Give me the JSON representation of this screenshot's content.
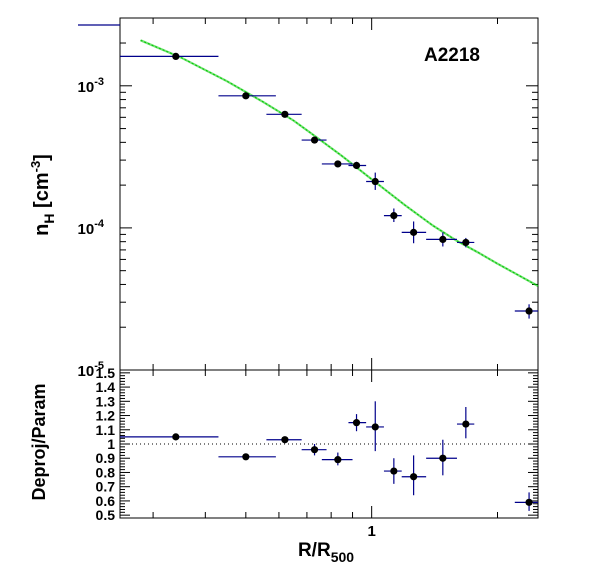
{
  "chart_data": [
    {
      "type": "scatter",
      "panel": "top",
      "title": "A2218",
      "ylabel": "n_H [cm^-3]",
      "ylabel_main": "n",
      "ylabel_sub": "H",
      "ylabel_unit": "[cm",
      "ylabel_unit_sup": "-3",
      "ylabel_unit_close": "]",
      "xscale": "log",
      "yscale": "log",
      "xlim": [
        0.25,
        2.5
      ],
      "ylim": [
        1e-05,
        0.003
      ],
      "ytick_values": [
        0.001,
        0.0001,
        1e-05
      ],
      "ytick_labels": [
        {
          "base": "10",
          "exp": "-3"
        },
        {
          "base": "10",
          "exp": "-4"
        },
        {
          "base": "10",
          "exp": "-5"
        }
      ],
      "colors": {
        "points": "#000000",
        "xerr": "#00008b",
        "yerr": "#00008b",
        "fit": "#00c800"
      },
      "series": [
        {
          "kind": "points",
          "points": [
            {
              "x": 0.34,
              "xlo": 0.25,
              "xhi": 0.43,
              "y": 0.00161,
              "ylo": 0.00156,
              "yhi": 0.00166
            },
            {
              "x": 0.5,
              "xlo": 0.43,
              "xhi": 0.59,
              "y": 0.00085,
              "ylo": 0.00082,
              "yhi": 0.00088
            },
            {
              "x": 0.62,
              "xlo": 0.56,
              "xhi": 0.68,
              "y": 0.00063,
              "ylo": 0.00061,
              "yhi": 0.00065
            },
            {
              "x": 0.73,
              "xlo": 0.68,
              "xhi": 0.78,
              "y": 0.000415,
              "ylo": 0.0004,
              "yhi": 0.00043
            },
            {
              "x": 0.83,
              "xlo": 0.76,
              "xhi": 0.9,
              "y": 0.000282,
              "ylo": 0.000268,
              "yhi": 0.000296
            },
            {
              "x": 0.92,
              "xlo": 0.88,
              "xhi": 0.97,
              "y": 0.000275,
              "ylo": 0.000262,
              "yhi": 0.000292
            },
            {
              "x": 1.02,
              "xlo": 0.97,
              "xhi": 1.07,
              "y": 0.000212,
              "ylo": 0.000185,
              "yhi": 0.000245
            },
            {
              "x": 1.13,
              "xlo": 1.07,
              "xhi": 1.18,
              "y": 0.000122,
              "ylo": 0.00011,
              "yhi": 0.000137
            },
            {
              "x": 1.26,
              "xlo": 1.18,
              "xhi": 1.35,
              "y": 9.3e-05,
              "ylo": 7.8e-05,
              "yhi": 0.000111
            },
            {
              "x": 1.48,
              "xlo": 1.35,
              "xhi": 1.6,
              "y": 8.3e-05,
              "ylo": 7.4e-05,
              "yhi": 9.3e-05
            },
            {
              "x": 1.68,
              "xlo": 1.6,
              "xhi": 1.76,
              "y": 7.9e-05,
              "ylo": 7.3e-05,
              "yhi": 8.5e-05
            },
            {
              "x": 2.38,
              "xlo": 2.2,
              "xhi": 2.5,
              "y": 2.6e-05,
              "ylo": 2.3e-05,
              "yhi": 2.9e-05
            }
          ]
        },
        {
          "kind": "fit",
          "x": [
            0.28,
            0.35,
            0.45,
            0.55,
            0.65,
            0.75,
            0.85,
            1.0,
            1.2,
            1.4,
            1.6,
            1.8,
            2.0,
            2.2,
            2.5
          ],
          "y": [
            0.00209,
            0.00158,
            0.00108,
            0.00077,
            0.00057,
            0.00042,
            0.00032,
            0.00022,
            0.000145,
            0.000104,
            8.1e-05,
            6.7e-05,
            5.6e-05,
            4.8e-05,
            3.9e-05
          ]
        }
      ]
    },
    {
      "type": "scatter",
      "panel": "bottom",
      "ylabel": "Deproj/Param",
      "xlabel": "R/R_500",
      "xlabel_main": "R/R",
      "xlabel_sub": "500",
      "xscale": "log",
      "xlim": [
        0.25,
        2.5
      ],
      "ylim": [
        0.48,
        1.52
      ],
      "xticks": [
        {
          "value": 1,
          "label": "1"
        }
      ],
      "yticks": [
        {
          "value": 0.5,
          "label": "0.5"
        },
        {
          "value": 0.6,
          "label": "0.6"
        },
        {
          "value": 0.7,
          "label": "0.7"
        },
        {
          "value": 0.8,
          "label": "0.8"
        },
        {
          "value": 0.9,
          "label": "0.9"
        },
        {
          "value": 1.0,
          "label": "1"
        },
        {
          "value": 1.1,
          "label": "1.1"
        },
        {
          "value": 1.2,
          "label": "1.2"
        },
        {
          "value": 1.3,
          "label": "1.3"
        },
        {
          "value": 1.4,
          "label": "1.4"
        },
        {
          "value": 1.5,
          "label": "1.5"
        }
      ],
      "reference_line": 1.0,
      "colors": {
        "points": "#000000",
        "xerr": "#00008b",
        "yerr": "#00008b",
        "reference": "#000000"
      },
      "points": [
        {
          "x": 0.34,
          "xlo": 0.25,
          "xhi": 0.43,
          "y": 1.05,
          "ylo": 1.03,
          "yhi": 1.07
        },
        {
          "x": 0.5,
          "xlo": 0.43,
          "xhi": 0.59,
          "y": 0.91,
          "ylo": 0.895,
          "yhi": 0.925
        },
        {
          "x": 0.62,
          "xlo": 0.56,
          "xhi": 0.68,
          "y": 1.03,
          "ylo": 1.01,
          "yhi": 1.05
        },
        {
          "x": 0.73,
          "xlo": 0.68,
          "xhi": 0.78,
          "y": 0.96,
          "ylo": 0.92,
          "yhi": 1.0
        },
        {
          "x": 0.83,
          "xlo": 0.76,
          "xhi": 0.9,
          "y": 0.89,
          "ylo": 0.85,
          "yhi": 0.94
        },
        {
          "x": 0.92,
          "xlo": 0.88,
          "xhi": 0.97,
          "y": 1.15,
          "ylo": 1.09,
          "yhi": 1.21
        },
        {
          "x": 1.02,
          "xlo": 0.97,
          "xhi": 1.07,
          "y": 1.12,
          "ylo": 0.95,
          "yhi": 1.3
        },
        {
          "x": 1.13,
          "xlo": 1.07,
          "xhi": 1.18,
          "y": 0.81,
          "ylo": 0.72,
          "yhi": 0.9
        },
        {
          "x": 1.26,
          "xlo": 1.18,
          "xhi": 1.35,
          "y": 0.77,
          "ylo": 0.64,
          "yhi": 0.92
        },
        {
          "x": 1.48,
          "xlo": 1.35,
          "xhi": 1.6,
          "y": 0.9,
          "ylo": 0.78,
          "yhi": 1.03
        },
        {
          "x": 1.68,
          "xlo": 1.6,
          "xhi": 1.76,
          "y": 1.14,
          "ylo": 1.04,
          "yhi": 1.26
        },
        {
          "x": 2.38,
          "xlo": 2.2,
          "xhi": 2.5,
          "y": 0.59,
          "ylo": 0.53,
          "yhi": 0.66
        }
      ]
    }
  ]
}
